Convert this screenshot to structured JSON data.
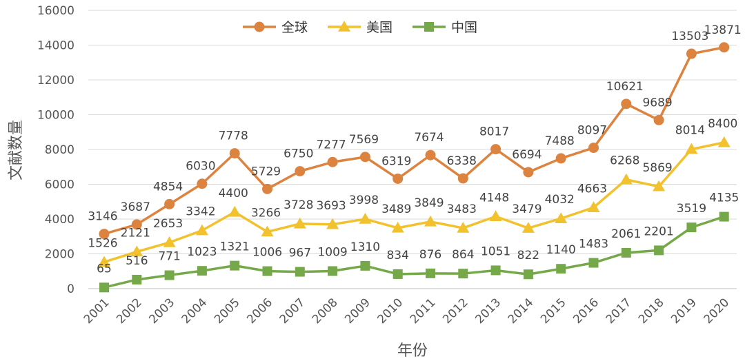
{
  "chart_data": {
    "type": "line",
    "title": "",
    "xlabel": "年份",
    "ylabel": "文献数量",
    "ylim": [
      0,
      16000
    ],
    "yticks": [
      0,
      2000,
      4000,
      6000,
      8000,
      10000,
      12000,
      14000,
      16000
    ],
    "grid": true,
    "legend_position": "top-center",
    "categories": [
      "2001",
      "2002",
      "2003",
      "2004",
      "2005",
      "2006",
      "2007",
      "2008",
      "2009",
      "2010",
      "2011",
      "2012",
      "2013",
      "2014",
      "2015",
      "2016",
      "2017",
      "2018",
      "2019",
      "2020"
    ],
    "series": [
      {
        "name": "全球",
        "color": "#dd8340",
        "marker": "circle",
        "values": [
          3146,
          3687,
          4854,
          6030,
          7778,
          5729,
          6750,
          7277,
          7569,
          6319,
          7674,
          6338,
          8017,
          6694,
          7488,
          8097,
          10621,
          9689,
          13503,
          13871
        ]
      },
      {
        "name": "美国",
        "color": "#f2c12e",
        "marker": "triangle",
        "values": [
          1526,
          2121,
          2653,
          3342,
          4400,
          3266,
          3728,
          3693,
          3998,
          3489,
          3849,
          3483,
          4148,
          3479,
          4032,
          4663,
          6268,
          5869,
          8014,
          8400
        ]
      },
      {
        "name": "中国",
        "color": "#74a849",
        "marker": "square",
        "values": [
          65,
          516,
          771,
          1023,
          1321,
          1006,
          967,
          1009,
          1310,
          834,
          876,
          864,
          1051,
          822,
          1140,
          1483,
          2061,
          2201,
          3519,
          4135
        ]
      }
    ]
  }
}
